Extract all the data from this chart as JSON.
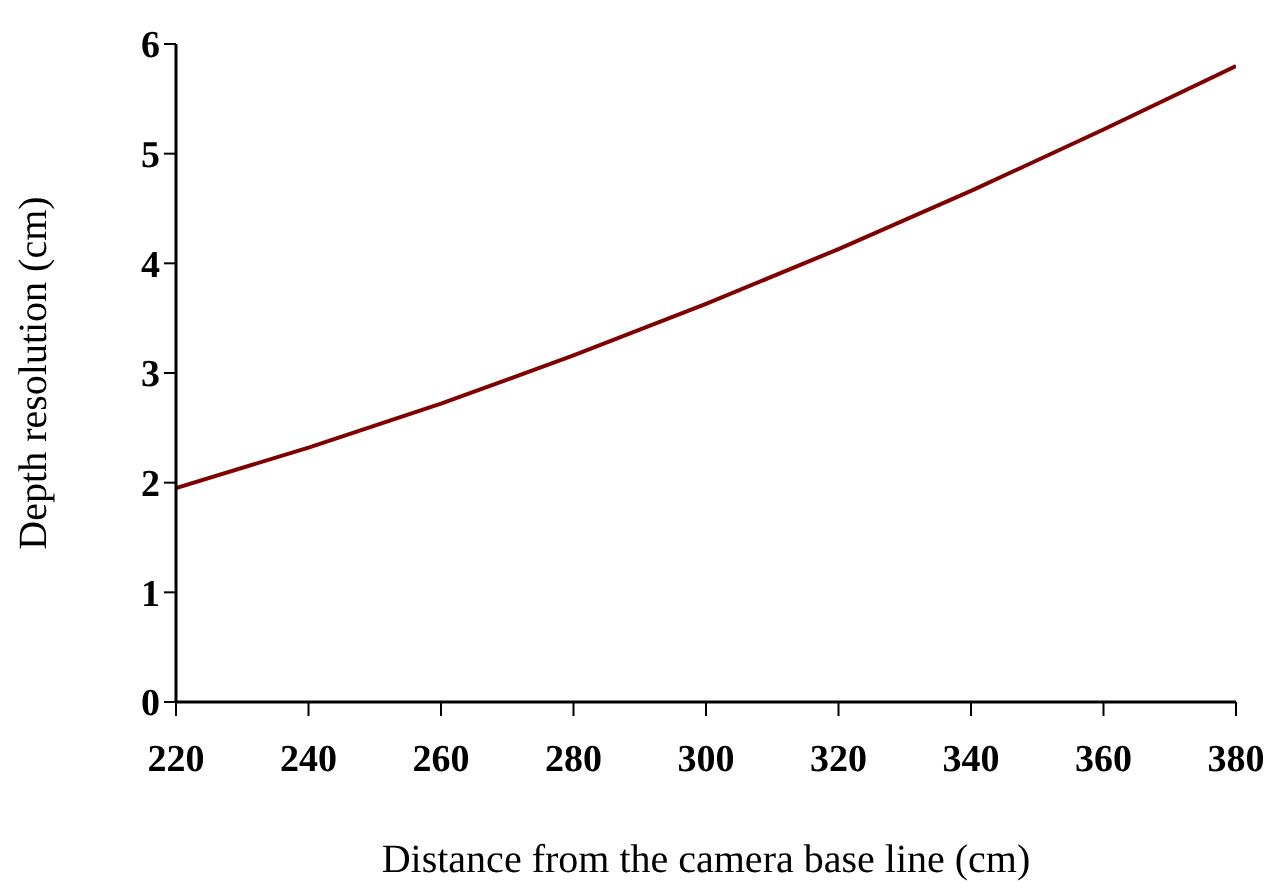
{
  "chart_data": {
    "type": "line",
    "xlabel": "Distance from the camera base line (cm)",
    "ylabel": "Depth resolution (cm)",
    "x": [
      220,
      240,
      260,
      280,
      300,
      320,
      340,
      360,
      380
    ],
    "series": [
      {
        "color": "#800000",
        "values": [
          1.95,
          2.32,
          2.72,
          3.16,
          3.63,
          4.13,
          4.66,
          5.22,
          5.8
        ]
      }
    ],
    "xlim": [
      220,
      380
    ],
    "xticks": [
      220,
      240,
      260,
      280,
      300,
      320,
      340,
      360,
      380
    ],
    "ylim": [
      0,
      6
    ],
    "yticks": [
      0,
      1,
      2,
      3,
      4,
      5,
      6
    ],
    "grid": false,
    "legend": false,
    "marker": "none",
    "line_style": "solid"
  }
}
